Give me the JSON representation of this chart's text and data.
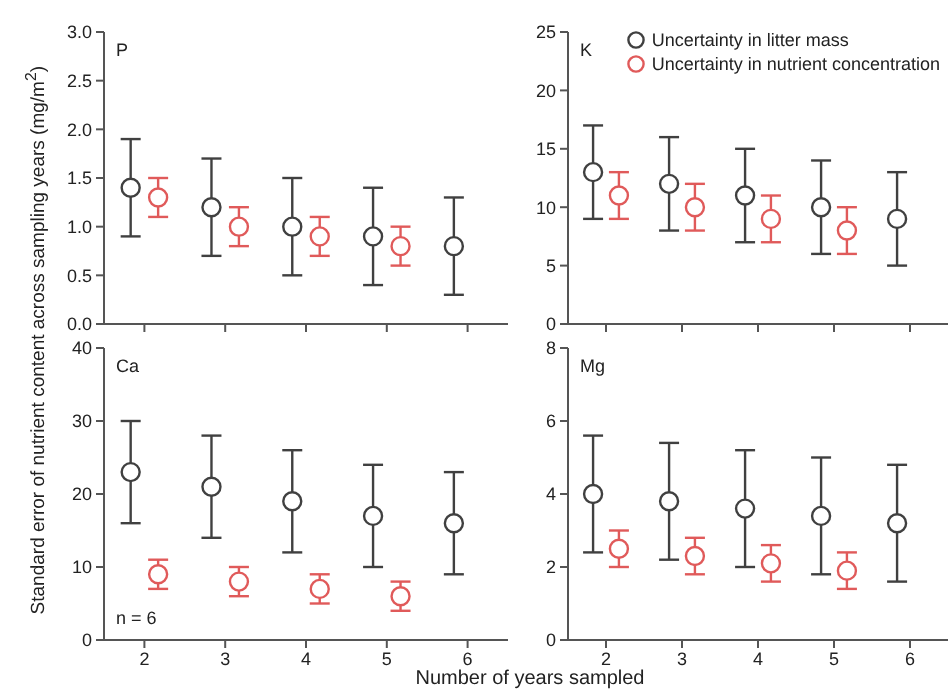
{
  "chart_data": [
    {
      "type": "scatter",
      "annotations": [
        "P"
      ],
      "ylabel": "Standard error of nutrient content across sampling years (mg/m$^{2}$)",
      "xlim": [
        1.5,
        6.5
      ],
      "xticks": [
        2,
        3,
        4,
        5,
        6
      ],
      "ylim": [
        0,
        3
      ],
      "yticks": [
        {
          "value": 0,
          "label": "0.0"
        },
        0.5,
        {
          "value": 1,
          "label": "1.0"
        },
        1.5,
        {
          "value": 2,
          "label": "2.0"
        },
        2.5,
        {
          "value": 3,
          "label": "3.0"
        }
      ],
      "tick_labels": "y",
      "marker": "circle",
      "series": [
        {
          "color": "#404040",
          "x": [
            1.83,
            2.83,
            3.83,
            4.83,
            5.83
          ],
          "values": [
            1.4,
            1.2,
            1.0,
            0.9,
            0.8
          ],
          "errors": [
            0.5,
            0.5,
            0.5,
            0.5,
            0.5
          ]
        },
        {
          "color": "#e05a5a",
          "x": [
            2.17,
            3.17,
            4.17,
            5.17
          ],
          "values": [
            1.3,
            1.0,
            0.9,
            0.8
          ],
          "errors": [
            0.2,
            0.2,
            0.2,
            0.2
          ]
        }
      ]
    },
    {
      "type": "scatter",
      "annotations": [
        "K"
      ],
      "legend": "top right",
      "xlim": [
        1.5,
        6.5
      ],
      "xticks": [
        2,
        3,
        4,
        5,
        6
      ],
      "ylim": [
        0,
        25
      ],
      "yticks": [
        0,
        5,
        10,
        15,
        20,
        25
      ],
      "tick_labels": "y",
      "marker": "circle",
      "series": [
        {
          "name": "Uncertainty in litter mass",
          "color": "#404040",
          "x": [
            1.83,
            2.83,
            3.83,
            4.83,
            5.83
          ],
          "values": [
            13,
            12,
            11,
            10,
            9
          ],
          "errors": [
            4,
            4,
            4,
            4,
            4
          ]
        },
        {
          "name": "Uncertainty in nutrient concentration",
          "color": "#e05a5a",
          "x": [
            2.17,
            3.17,
            4.17,
            5.17
          ],
          "values": [
            11,
            10,
            9,
            8
          ],
          "errors": [
            2,
            2,
            2,
            2
          ]
        }
      ]
    },
    {
      "type": "scatter",
      "annotations": [
        "Ca",
        "n = 6"
      ],
      "xlabel": "Number of years sampled",
      "xlim": [
        1.5,
        6.5
      ],
      "xticks": [
        2,
        3,
        4,
        5,
        6
      ],
      "ylim": [
        0,
        40
      ],
      "yticks": [
        0,
        10,
        20,
        30,
        40
      ],
      "marker": "circle",
      "series": [
        {
          "color": "#404040",
          "x": [
            1.83,
            2.83,
            3.83,
            4.83,
            5.83
          ],
          "values": [
            23,
            21,
            19,
            17,
            16
          ],
          "errors": [
            7,
            7,
            7,
            7,
            7
          ]
        },
        {
          "color": "#e05a5a",
          "x": [
            2.17,
            3.17,
            4.17,
            5.17
          ],
          "values": [
            9,
            8,
            7,
            6
          ],
          "errors": [
            2,
            2,
            2,
            2
          ]
        }
      ]
    },
    {
      "type": "scatter",
      "annotations": [
        "Mg"
      ],
      "xlim": [
        1.5,
        6.5
      ],
      "xticks": [
        2,
        3,
        4,
        5,
        6
      ],
      "ylim": [
        0,
        8
      ],
      "yticks": [
        0,
        2,
        4,
        6,
        8
      ],
      "marker": "circle",
      "series": [
        {
          "color": "#404040",
          "x": [
            1.83,
            2.83,
            3.83,
            4.83,
            5.83
          ],
          "values": [
            4.0,
            3.8,
            3.6,
            3.4,
            3.2
          ],
          "errors": [
            1.6,
            1.6,
            1.6,
            1.6,
            1.6
          ]
        },
        {
          "color": "#e05a5a",
          "x": [
            2.17,
            3.17,
            4.17,
            5.17
          ],
          "values": [
            2.5,
            2.3,
            2.1,
            1.9
          ],
          "errors": [
            0.5,
            0.5,
            0.5,
            0.5
          ]
        }
      ]
    }
  ]
}
